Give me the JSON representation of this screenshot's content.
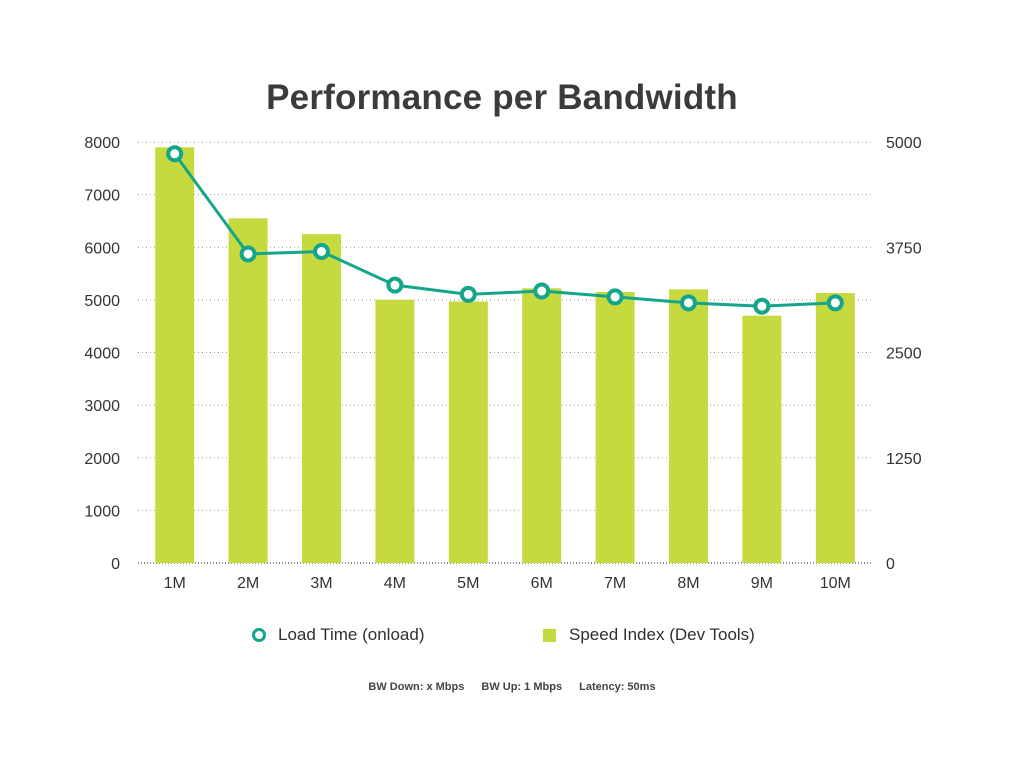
{
  "chart_data": {
    "type": "bar",
    "title": "Performance per Bandwidth",
    "categories": [
      "1M",
      "2M",
      "3M",
      "4M",
      "5M",
      "6M",
      "7M",
      "8M",
      "9M",
      "10M"
    ],
    "series": [
      {
        "name": "Speed Index (Dev Tools)",
        "type": "bar",
        "axis": "left",
        "color": "#c6da3f",
        "values": [
          7900,
          6550,
          6250,
          5000,
          4970,
          5220,
          5150,
          5200,
          4700,
          5130
        ]
      },
      {
        "name": "Load Time (onload)",
        "type": "line",
        "axis": "right",
        "color": "#14a58a",
        "values": [
          4860,
          3670,
          3700,
          3300,
          3190,
          3230,
          3160,
          3090,
          3050,
          3090
        ]
      }
    ],
    "y_left": {
      "ylim": [
        0,
        8000
      ],
      "ticks": [
        "0",
        "1000",
        "2000",
        "3000",
        "4000",
        "5000",
        "6000",
        "7000",
        "8000"
      ]
    },
    "y_right": {
      "ylim": [
        0,
        5000
      ],
      "ticks": [
        "0",
        "1250",
        "2500",
        "3750",
        "5000"
      ]
    },
    "grid": "horizontal dotted",
    "legend_position": "bottom"
  },
  "legend": {
    "line_label": "Load Time (onload)",
    "bar_label": "Speed Index (Dev Tools)"
  },
  "footnote": {
    "bw_down": "BW Down: x Mbps",
    "bw_up": "BW Up: 1 Mbps",
    "latency": "Latency: 50ms"
  }
}
